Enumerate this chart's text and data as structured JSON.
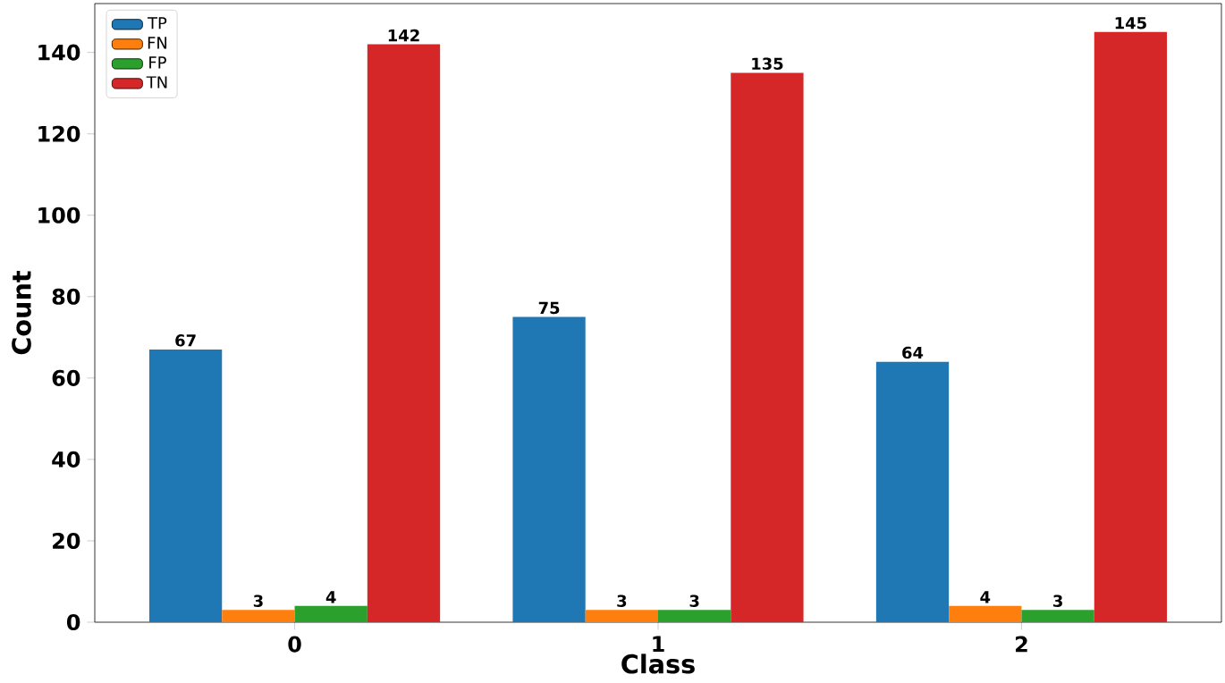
{
  "chart_data": {
    "type": "bar",
    "xlabel": "Class",
    "ylabel": "Count",
    "categories": [
      "0",
      "1",
      "2"
    ],
    "series": [
      {
        "name": "TP",
        "color": "#1f77b4",
        "values": [
          67,
          75,
          64
        ]
      },
      {
        "name": "FN",
        "color": "#ff7f0e",
        "values": [
          3,
          3,
          4
        ]
      },
      {
        "name": "FP",
        "color": "#2ca02c",
        "values": [
          4,
          3,
          3
        ]
      },
      {
        "name": "TN",
        "color": "#d62728",
        "values": [
          142,
          135,
          145
        ]
      }
    ],
    "ylim": [
      0,
      152
    ],
    "yticks": [
      0,
      20,
      40,
      60,
      80,
      100,
      120,
      140
    ],
    "data_labels": true,
    "legend": "top left",
    "grid": false
  }
}
